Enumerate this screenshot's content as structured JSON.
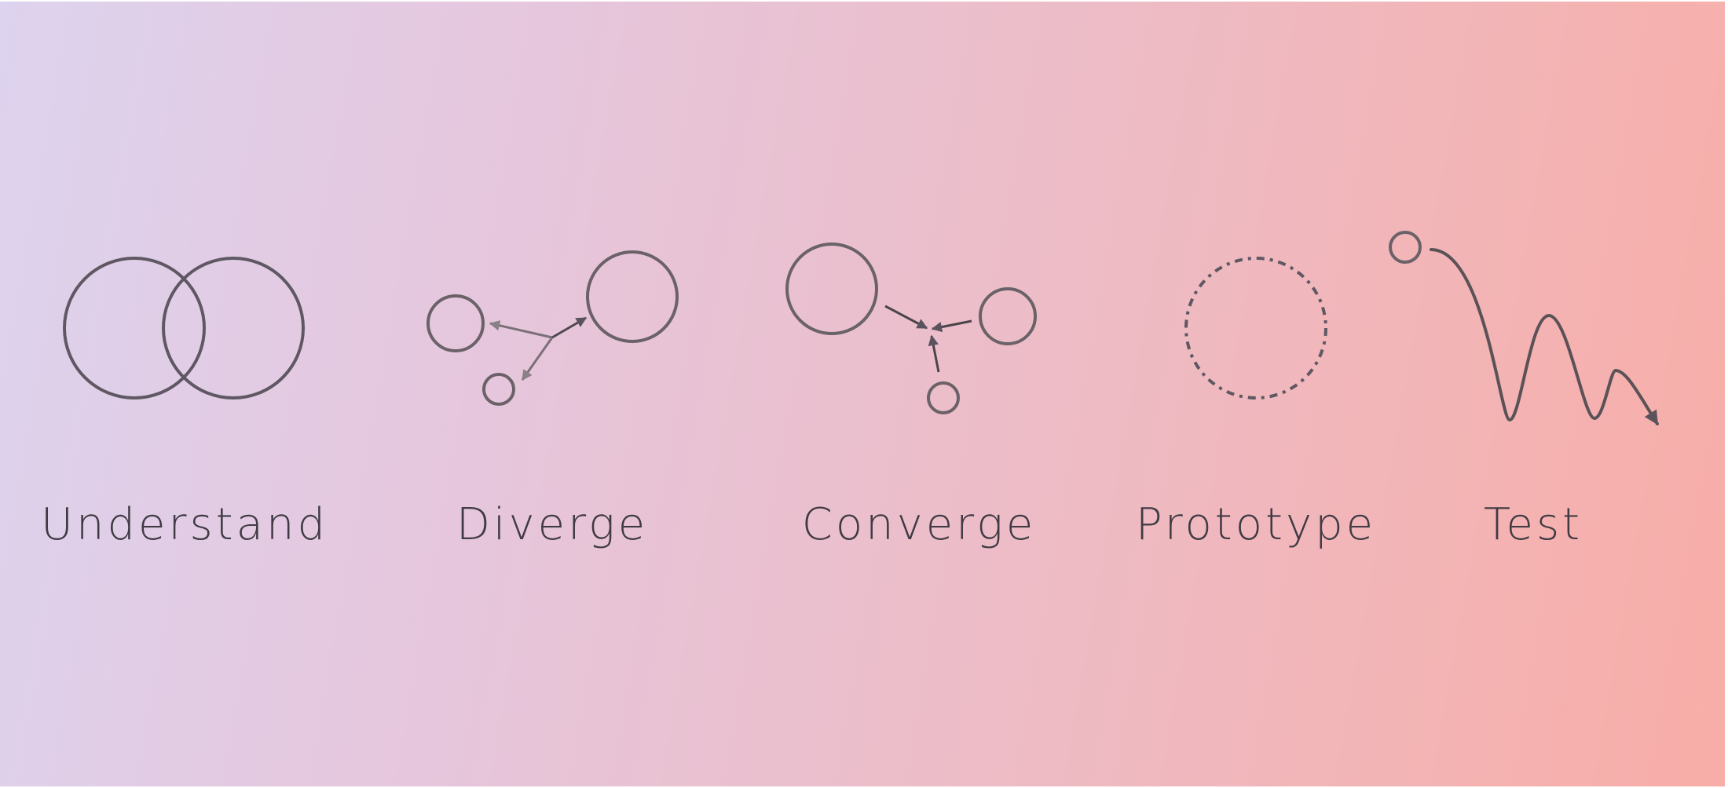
{
  "colors": {
    "stroke": "#5f5863",
    "text": "#3f3a43",
    "gradient_start": "#ddd3ee",
    "gradient_end": "#f8ada7"
  },
  "stages": [
    {
      "label": "Understand",
      "icon": "overlapping-circles-icon"
    },
    {
      "label": "Diverge",
      "icon": "diverging-arrows-icon"
    },
    {
      "label": "Converge",
      "icon": "converging-arrows-icon"
    },
    {
      "label": "Prototype",
      "icon": "dashed-circle-icon"
    },
    {
      "label": "Test",
      "icon": "wave-path-icon"
    }
  ]
}
